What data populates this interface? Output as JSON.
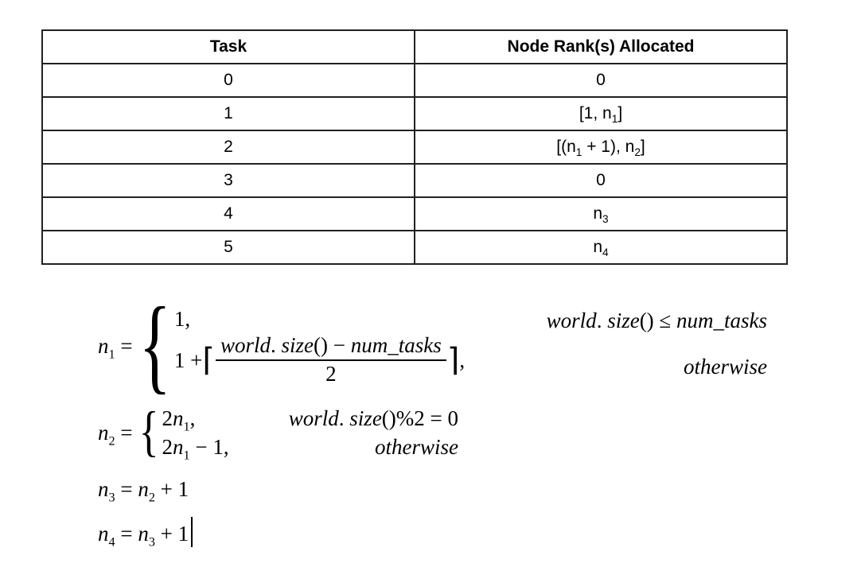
{
  "page": {
    "background": "#ffffff",
    "text_color": "#000000",
    "table_border_color": "#212121"
  },
  "table": {
    "headers": [
      {
        "label": "Task"
      },
      {
        "label": "Node Rank(s) Allocated"
      }
    ],
    "rows": [
      {
        "task": "0",
        "alloc": [
          {
            "t": "0"
          }
        ]
      },
      {
        "task": "1",
        "alloc": [
          {
            "t": "[1, n"
          },
          {
            "sub": "1"
          },
          {
            "t": "]"
          }
        ]
      },
      {
        "task": "2",
        "alloc": [
          {
            "t": "[(n"
          },
          {
            "sub": "1"
          },
          {
            "t": " + 1), n"
          },
          {
            "sub": "2"
          },
          {
            "t": "]"
          }
        ]
      },
      {
        "task": "3",
        "alloc": [
          {
            "t": "0"
          }
        ]
      },
      {
        "task": "4",
        "alloc": [
          {
            "t": "n"
          },
          {
            "sub": "3"
          }
        ]
      },
      {
        "task": "5",
        "alloc": [
          {
            "t": "n"
          },
          {
            "sub": "4"
          }
        ]
      }
    ]
  },
  "equations": {
    "n1": {
      "lhs": [
        {
          "i": "n"
        },
        {
          "sub": "1"
        },
        {
          "t": " ="
        }
      ],
      "brace": "{",
      "case1": [
        {
          "t": "1,"
        }
      ],
      "case2_prefix": [
        {
          "t": "1 + "
        }
      ],
      "lceil": "⌈",
      "numerator": [
        {
          "i": "world"
        },
        {
          "t": ". "
        },
        {
          "i": "size"
        },
        {
          "t": "() − "
        },
        {
          "i": "num_tasks"
        }
      ],
      "denominator": "2",
      "rceil": "⌉",
      "case2_suffix": ",",
      "cond1": [
        {
          "i": "world"
        },
        {
          "t": ". "
        },
        {
          "i": "size"
        },
        {
          "t": "() ≤ "
        },
        {
          "i": "num_tasks"
        }
      ],
      "cond2": [
        {
          "i": "otherwise"
        }
      ]
    },
    "n2": {
      "lhs": [
        {
          "i": "n"
        },
        {
          "sub": "2"
        },
        {
          "t": " ="
        }
      ],
      "brace": "{",
      "case1": [
        {
          "t": "2"
        },
        {
          "i": "n"
        },
        {
          "sub": "1"
        },
        {
          "t": ","
        }
      ],
      "case2": [
        {
          "t": "2"
        },
        {
          "i": "n"
        },
        {
          "sub": "1"
        },
        {
          "t": " − 1,"
        }
      ],
      "cond1": [
        {
          "i": "world"
        },
        {
          "t": ". "
        },
        {
          "i": "size"
        },
        {
          "t": "()%2 = 0"
        }
      ],
      "cond2": [
        {
          "i": "otherwise"
        }
      ]
    },
    "n3": {
      "line": [
        {
          "i": "n"
        },
        {
          "sub": "3"
        },
        {
          "t": " = "
        },
        {
          "i": "n"
        },
        {
          "sub": "2"
        },
        {
          "t": " + 1"
        }
      ]
    },
    "n4": {
      "line": [
        {
          "i": "n"
        },
        {
          "sub": "4"
        },
        {
          "t": " = "
        },
        {
          "i": "n"
        },
        {
          "sub": "3"
        },
        {
          "t": " + 1"
        }
      ]
    }
  }
}
